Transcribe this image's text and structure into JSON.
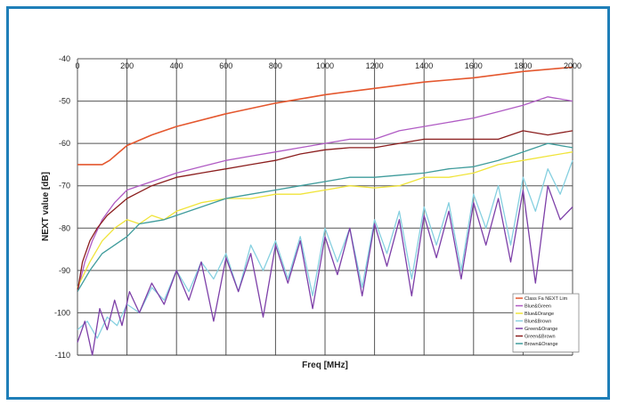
{
  "chart_data": {
    "type": "line",
    "title": "",
    "xlabel": "Freq [MHz]",
    "ylabel": "NEXT value [dB]",
    "xlim": [
      0,
      2000
    ],
    "ylim": [
      -110,
      -40
    ],
    "x_ticks": [
      "0",
      "200",
      "400",
      "600",
      "800",
      "1000",
      "1200",
      "1400",
      "1600",
      "1800",
      "2000"
    ],
    "y_ticks": [
      "-40",
      "-50",
      "-60",
      "-70",
      "-80",
      "-90",
      "-100",
      "-110"
    ],
    "grid": true,
    "legend_position": "bottom-right",
    "series": [
      {
        "name": "Class Fa NEXT Lim",
        "color": "#e4572e",
        "x": [
          0,
          100,
          130,
          200,
          300,
          400,
          600,
          800,
          1000,
          1200,
          1400,
          1600,
          1800,
          2000
        ],
        "y": [
          -65,
          -65,
          -64,
          -60.5,
          -58,
          -56,
          -53,
          -50.5,
          -48.5,
          -47,
          -45.5,
          -44.5,
          -43,
          -42
        ]
      },
      {
        "name": "Blue&Green",
        "color": "#b05bc4",
        "x": [
          0,
          30,
          60,
          100,
          150,
          200,
          300,
          400,
          500,
          600,
          700,
          800,
          900,
          1000,
          1100,
          1200,
          1300,
          1400,
          1500,
          1600,
          1700,
          1800,
          1900,
          2000
        ],
        "y": [
          -95,
          -88,
          -83,
          -78,
          -74,
          -71,
          -69,
          -67,
          -65.5,
          -64,
          -63,
          -62,
          -61,
          -60,
          -59,
          -59,
          -57,
          -56,
          -55,
          -54,
          -52.5,
          -51,
          -49,
          -50
        ]
      },
      {
        "name": "Blue&Orange",
        "color": "#f0e43a",
        "x": [
          0,
          50,
          100,
          150,
          200,
          250,
          300,
          350,
          400,
          500,
          600,
          700,
          800,
          900,
          1000,
          1100,
          1200,
          1300,
          1400,
          1500,
          1600,
          1700,
          1800,
          1900,
          2000
        ],
        "y": [
          -94,
          -88,
          -83,
          -80,
          -78,
          -79,
          -77,
          -78,
          -76,
          -74,
          -73,
          -73,
          -72,
          -72,
          -71,
          -70,
          -70.5,
          -70,
          -68,
          -68,
          -67,
          -65,
          -64,
          -63,
          -62
        ]
      },
      {
        "name": "Blue&Brown",
        "color": "#86d0e0",
        "x": [
          0,
          40,
          80,
          120,
          160,
          200,
          250,
          300,
          350,
          400,
          450,
          500,
          550,
          600,
          650,
          700,
          750,
          800,
          850,
          900,
          950,
          1000,
          1050,
          1100,
          1150,
          1200,
          1250,
          1300,
          1350,
          1400,
          1450,
          1500,
          1550,
          1600,
          1650,
          1700,
          1750,
          1800,
          1850,
          1900,
          1950,
          2000
        ],
        "y": [
          -104,
          -102,
          -106,
          -101,
          -103,
          -98,
          -100,
          -94,
          -97,
          -90,
          -95,
          -88,
          -92,
          -86,
          -95,
          -84,
          -90,
          -83,
          -92,
          -82,
          -96,
          -80,
          -88,
          -80,
          -94,
          -78,
          -86,
          -76,
          -92,
          -75,
          -84,
          -74,
          -90,
          -72,
          -80,
          -70,
          -84,
          -68,
          -76,
          -66,
          -72,
          -64
        ]
      },
      {
        "name": "Green&Orange",
        "color": "#7d3fa8",
        "x": [
          0,
          30,
          60,
          90,
          120,
          150,
          180,
          210,
          250,
          300,
          350,
          400,
          450,
          500,
          550,
          600,
          650,
          700,
          750,
          800,
          850,
          900,
          950,
          1000,
          1050,
          1100,
          1150,
          1200,
          1250,
          1300,
          1350,
          1400,
          1450,
          1500,
          1550,
          1600,
          1650,
          1700,
          1750,
          1800,
          1850,
          1900,
          1950,
          2000
        ],
        "y": [
          -107,
          -102,
          -110,
          -99,
          -104,
          -97,
          -103,
          -95,
          -100,
          -93,
          -98,
          -90,
          -97,
          -88,
          -102,
          -87,
          -95,
          -86,
          -101,
          -84,
          -93,
          -83,
          -99,
          -82,
          -91,
          -80,
          -96,
          -79,
          -89,
          -78,
          -96,
          -77,
          -87,
          -76,
          -92,
          -74,
          -84,
          -73,
          -88,
          -71,
          -93,
          -70,
          -78,
          -75
        ]
      },
      {
        "name": "Green&Brown",
        "color": "#8b1e1e",
        "x": [
          0,
          20,
          50,
          80,
          120,
          160,
          200,
          250,
          300,
          350,
          400,
          450,
          500,
          600,
          700,
          800,
          900,
          1000,
          1100,
          1200,
          1300,
          1400,
          1500,
          1600,
          1700,
          1800,
          1900,
          2000
        ],
        "y": [
          -95,
          -88,
          -83,
          -80,
          -77,
          -75,
          -73,
          -71.5,
          -70,
          -69,
          -68,
          -67.5,
          -67,
          -66,
          -65,
          -64,
          -62.5,
          -61.5,
          -61,
          -61,
          -60,
          -59,
          -59,
          -59,
          -59,
          -57,
          -58,
          -57
        ]
      },
      {
        "name": "Brown&Orange",
        "color": "#3f9c9c",
        "x": [
          0,
          50,
          100,
          150,
          200,
          250,
          300,
          350,
          400,
          450,
          500,
          550,
          600,
          700,
          800,
          900,
          1000,
          1100,
          1200,
          1300,
          1400,
          1500,
          1600,
          1700,
          1800,
          1900,
          2000
        ],
        "y": [
          -95,
          -90,
          -86,
          -84,
          -82,
          -79,
          -78.5,
          -78,
          -77,
          -76,
          -75,
          -74,
          -73,
          -72,
          -71,
          -70,
          -69,
          -68,
          -68,
          -67.5,
          -67,
          -66,
          -65.5,
          -64,
          -62,
          -60,
          -61
        ]
      }
    ]
  }
}
